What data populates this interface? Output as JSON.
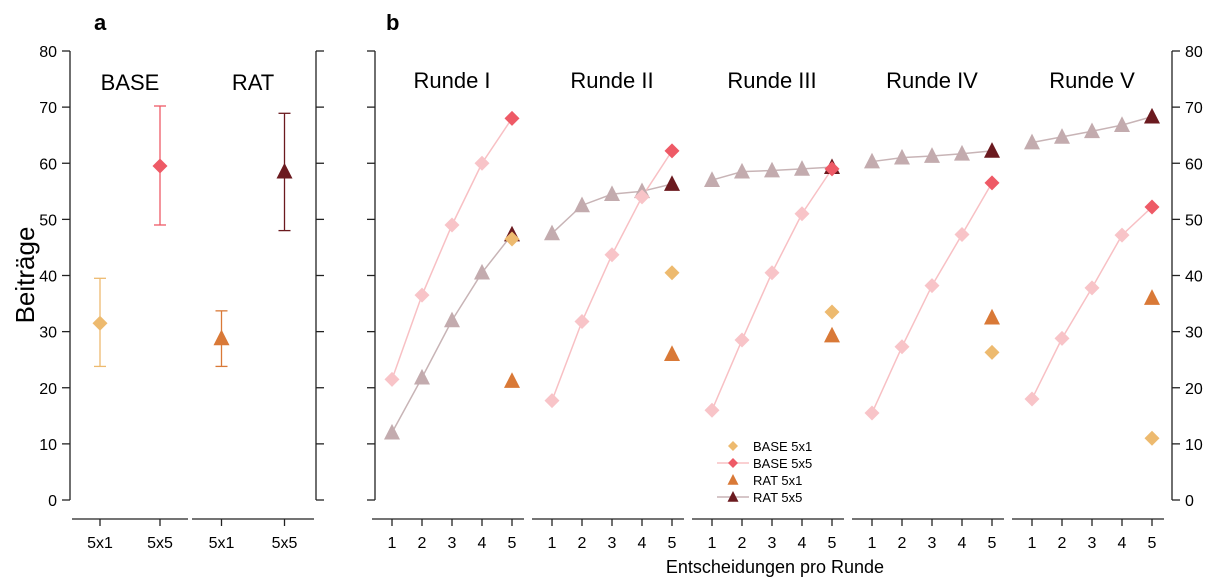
{
  "panel_letters": [
    "a",
    "b"
  ],
  "colors": {
    "base_5x1": "#EDBA6F",
    "base_5x5": "#EE5A66",
    "rat_5x1": "#D97937",
    "rat_5x5": "#6B1A1F",
    "base_5x5_faded": "#F8C4C8",
    "rat_5x5_faded": "#C3ABAE",
    "base_5x5_line": "#F8C0C4",
    "rat_5x5_line": "#C8B4B6"
  },
  "chart_data": [
    {
      "type": "scatter",
      "panel": "a",
      "ylabel": "Beiträge",
      "ylim": [
        0,
        80
      ],
      "yticks": [
        0,
        10,
        20,
        30,
        40,
        50,
        60,
        70,
        80
      ],
      "groups": [
        {
          "title": "BASE",
          "categories": [
            "5x1",
            "5x5"
          ],
          "points": [
            {
              "series": "BASE 5x1",
              "mean": 31.5,
              "low": 23.8,
              "high": 39.5
            },
            {
              "series": "BASE 5x5",
              "mean": 59.5,
              "low": 49.0,
              "high": 70.2
            }
          ]
        },
        {
          "title": "RAT",
          "categories": [
            "5x1",
            "5x5"
          ],
          "points": [
            {
              "series": "RAT 5x1",
              "mean": 28.8,
              "low": 23.8,
              "high": 33.7
            },
            {
              "series": "RAT 5x5",
              "mean": 58.5,
              "low": 48.0,
              "high": 68.9
            }
          ]
        }
      ]
    },
    {
      "type": "line",
      "panel": "b",
      "xlabel": "Entscheidungen pro Runde",
      "ylim": [
        0,
        80
      ],
      "yticks": [
        0,
        10,
        20,
        30,
        40,
        50,
        60,
        70,
        80
      ],
      "xticks": [
        "1",
        "2",
        "3",
        "4",
        "5"
      ],
      "legend": {
        "position": "bottom-center",
        "entries": [
          "BASE 5x1",
          "BASE 5x5",
          "RAT 5x1",
          "RAT 5x5"
        ]
      },
      "rounds": [
        {
          "title": "Runde I",
          "base_5x5": [
            21.5,
            36.5,
            49.0,
            60.0,
            68.0
          ],
          "rat_5x5": [
            12.0,
            21.8,
            32.0,
            40.5,
            47.3
          ],
          "base_5x1": 46.5,
          "rat_5x1": 21.2
        },
        {
          "title": "Runde II",
          "base_5x5": [
            17.7,
            31.8,
            43.7,
            54.0,
            62.2
          ],
          "rat_5x5": [
            47.5,
            52.5,
            54.5,
            55.0,
            56.3
          ],
          "base_5x1": 40.5,
          "rat_5x1": 26.0
        },
        {
          "title": "Runde III",
          "base_5x5": [
            16.0,
            28.5,
            40.5,
            51.0,
            59.0
          ],
          "rat_5x5": [
            57.0,
            58.5,
            58.7,
            59.0,
            59.3
          ],
          "base_5x1": 33.5,
          "rat_5x1": 29.3
        },
        {
          "title": "Runde IV",
          "base_5x5": [
            15.5,
            27.3,
            38.2,
            47.3,
            56.5
          ],
          "rat_5x5": [
            60.3,
            61.0,
            61.3,
            61.7,
            62.2
          ],
          "base_5x1": 26.3,
          "rat_5x1": 32.5
        },
        {
          "title": "Runde V",
          "base_5x5": [
            18.0,
            28.8,
            37.8,
            47.2,
            52.2
          ],
          "rat_5x5": [
            63.7,
            64.7,
            65.7,
            66.8,
            68.3
          ],
          "base_5x1": 11.0,
          "rat_5x1": 36.0
        }
      ]
    }
  ]
}
